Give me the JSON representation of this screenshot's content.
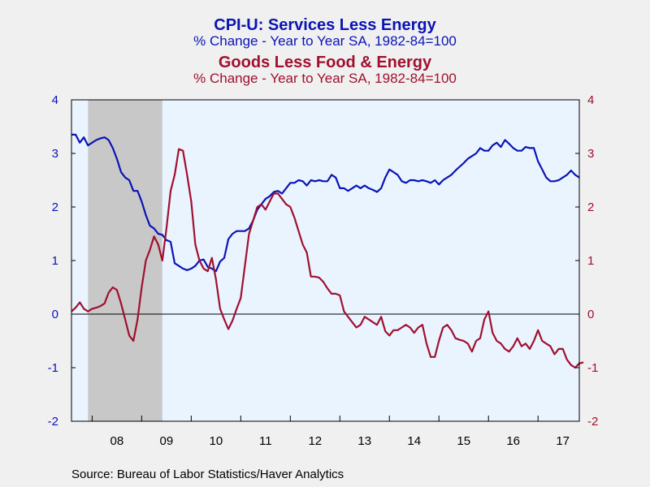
{
  "titles": {
    "s1_title": "CPI-U: Services Less Energy",
    "s1_subtitle": "% Change - Year to Year     SA, 1982-84=100",
    "s2_title": "Goods Less Food & Energy",
    "s2_subtitle": "% Change - Year to Year     SA, 1982-84=100"
  },
  "source": "Source:  Bureau of Labor Statistics/Haver Analytics",
  "colors": {
    "services": "#0a14b4",
    "goods": "#a0102e",
    "plot_bg": "#eaf4ff",
    "recession": "#c8c8c8"
  },
  "chart_data": {
    "type": "line",
    "x_start": "2007-08",
    "x_frequency": "monthly",
    "x_tick_labels": [
      "08",
      "09",
      "10",
      "11",
      "12",
      "13",
      "14",
      "15",
      "16",
      "17"
    ],
    "ylim_left": [
      -2,
      4
    ],
    "ylim_right": [
      -2,
      4
    ],
    "y_ticks_left": [
      "-2",
      "-1",
      "0",
      "1",
      "2",
      "3",
      "4"
    ],
    "y_ticks_right": [
      "-2",
      "-1",
      "0",
      "1",
      "2",
      "3",
      "4"
    ],
    "recession_shade": [
      "2007-12",
      "2009-06"
    ],
    "zero_line": true,
    "grid": false,
    "series": [
      {
        "axis": "left",
        "values": [
          3.35,
          3.35,
          3.2,
          3.3,
          3.15,
          3.2,
          3.25,
          3.28,
          3.3,
          3.25,
          3.1,
          2.9,
          2.65,
          2.55,
          2.5,
          2.3,
          2.3,
          2.1,
          1.85,
          1.65,
          1.6,
          1.5,
          1.48,
          1.38,
          1.35,
          0.95,
          0.9,
          0.85,
          0.82,
          0.85,
          0.9,
          1.0,
          1.02,
          0.88,
          0.85,
          0.8,
          0.98,
          1.05,
          1.4,
          1.5,
          1.55,
          1.55,
          1.55,
          1.6,
          1.75,
          1.95,
          2.05,
          2.15,
          2.2,
          2.28,
          2.3,
          2.25,
          2.35,
          2.45,
          2.45,
          2.5,
          2.48,
          2.4,
          2.5,
          2.48,
          2.5,
          2.48,
          2.48,
          2.6,
          2.55,
          2.35,
          2.35,
          2.3,
          2.35,
          2.4,
          2.35,
          2.4,
          2.35,
          2.32,
          2.28,
          2.35,
          2.55,
          2.7,
          2.65,
          2.6,
          2.48,
          2.45,
          2.5,
          2.5,
          2.48,
          2.5,
          2.48,
          2.45,
          2.5,
          2.42,
          2.5,
          2.55,
          2.6,
          2.68,
          2.75,
          2.82,
          2.9,
          2.95,
          3.0,
          3.1,
          3.05,
          3.05,
          3.15,
          3.2,
          3.12,
          3.25,
          3.18,
          3.1,
          3.05,
          3.05,
          3.12,
          3.1,
          3.1,
          2.85,
          2.7,
          2.55,
          2.48,
          2.48,
          2.5,
          2.55,
          2.6,
          2.68,
          2.6,
          2.55
        ]
      },
      {
        "axis": "right",
        "values": [
          0.05,
          0.12,
          0.22,
          0.1,
          0.05,
          0.1,
          0.12,
          0.15,
          0.2,
          0.4,
          0.5,
          0.45,
          0.2,
          -0.1,
          -0.4,
          -0.5,
          -0.1,
          0.5,
          1.0,
          1.2,
          1.45,
          1.3,
          1.0,
          1.6,
          2.3,
          2.6,
          3.08,
          3.05,
          2.6,
          2.1,
          1.3,
          1.0,
          0.85,
          0.8,
          1.05,
          0.65,
          0.1,
          -0.1,
          -0.28,
          -0.12,
          0.1,
          0.3,
          0.9,
          1.5,
          1.75,
          2.0,
          2.05,
          1.95,
          2.1,
          2.25,
          2.25,
          2.15,
          2.05,
          2.0,
          1.8,
          1.55,
          1.3,
          1.15,
          0.7,
          0.7,
          0.68,
          0.6,
          0.48,
          0.38,
          0.38,
          0.35,
          0.05,
          -0.05,
          -0.15,
          -0.25,
          -0.2,
          -0.05,
          -0.1,
          -0.15,
          -0.2,
          -0.05,
          -0.32,
          -0.4,
          -0.3,
          -0.3,
          -0.25,
          -0.2,
          -0.25,
          -0.35,
          -0.25,
          -0.2,
          -0.55,
          -0.8,
          -0.8,
          -0.5,
          -0.25,
          -0.2,
          -0.3,
          -0.45,
          -0.48,
          -0.5,
          -0.55,
          -0.7,
          -0.5,
          -0.45,
          -0.1,
          0.05,
          -0.35,
          -0.5,
          -0.55,
          -0.65,
          -0.7,
          -0.6,
          -0.45,
          -0.6,
          -0.55,
          -0.65,
          -0.5,
          -0.3,
          -0.5,
          -0.55,
          -0.6,
          -0.75,
          -0.65,
          -0.65,
          -0.85,
          -0.95,
          -1.0,
          -0.92,
          -0.9
        ]
      }
    ]
  }
}
